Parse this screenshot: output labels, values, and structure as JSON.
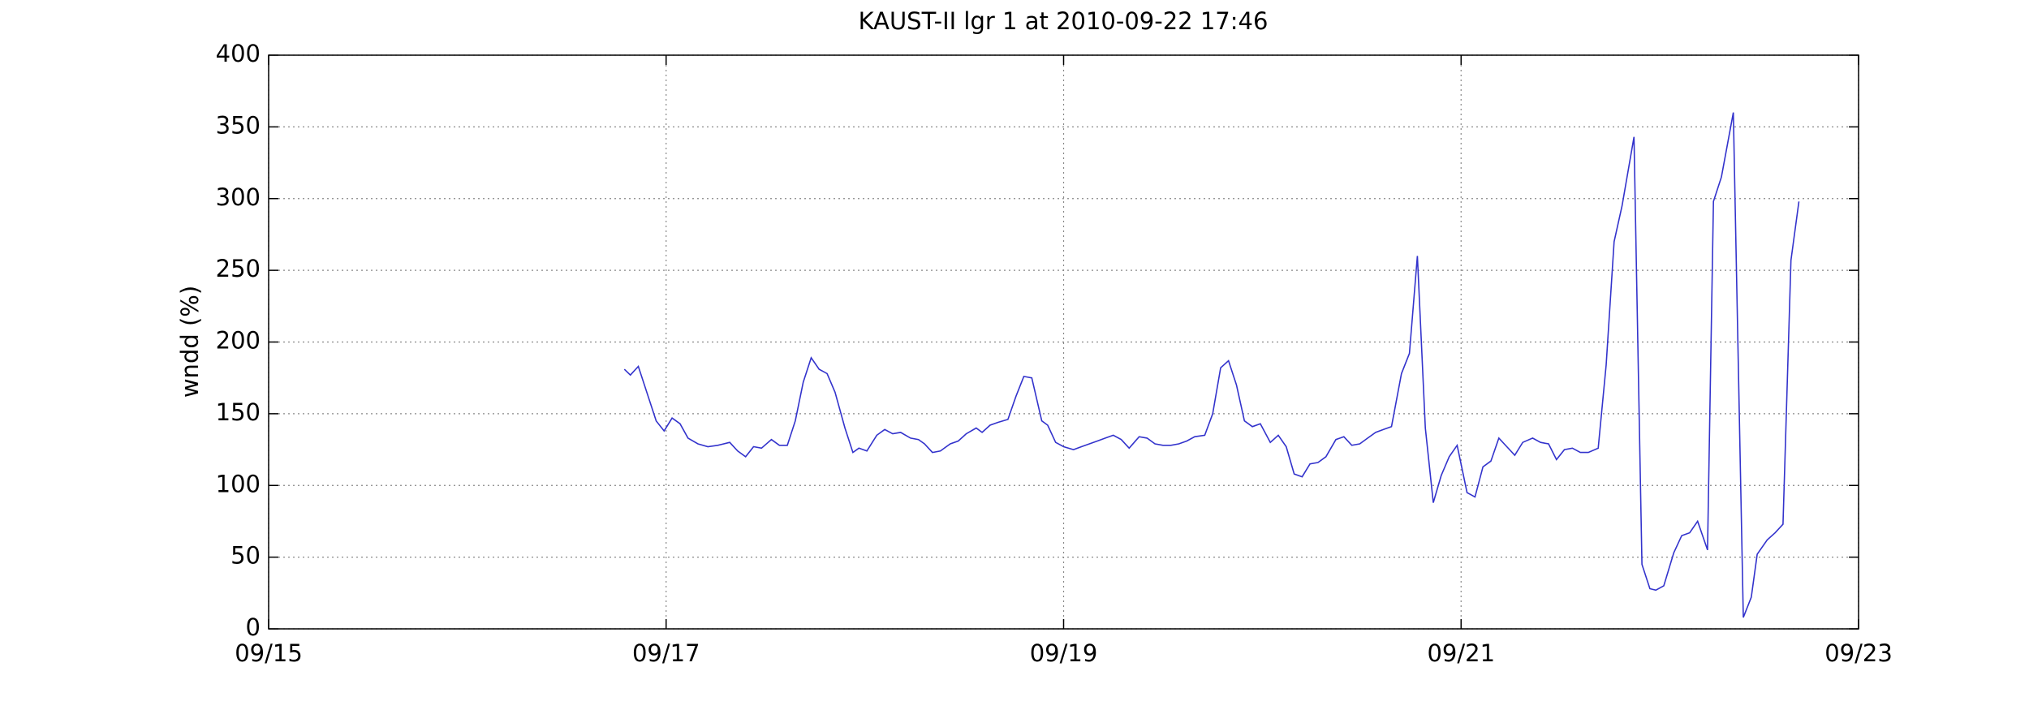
{
  "chart_data": {
    "type": "line",
    "title": "KAUST-II lgr 1 at 2010-09-22 17:46",
    "ylabel": "wndd (%)",
    "color": "#3333cc",
    "grid": true,
    "xlim": [
      0,
      8
    ],
    "xticks": [
      {
        "value": 0,
        "label": "09/15"
      },
      {
        "value": 2,
        "label": "09/17"
      },
      {
        "value": 4,
        "label": "09/19"
      },
      {
        "value": 6,
        "label": "09/21"
      },
      {
        "value": 8,
        "label": "09/23"
      }
    ],
    "ylim": [
      0,
      400
    ],
    "yticks": [
      0,
      50,
      100,
      150,
      200,
      250,
      300,
      350,
      400
    ],
    "x": [
      1.79,
      1.82,
      1.86,
      1.95,
      1.99,
      2.03,
      2.07,
      2.11,
      2.16,
      2.21,
      2.26,
      2.32,
      2.36,
      2.4,
      2.44,
      2.48,
      2.53,
      2.57,
      2.61,
      2.65,
      2.69,
      2.73,
      2.77,
      2.81,
      2.85,
      2.9,
      2.94,
      2.97,
      3.01,
      3.06,
      3.1,
      3.14,
      3.18,
      3.23,
      3.27,
      3.3,
      3.34,
      3.38,
      3.43,
      3.47,
      3.51,
      3.56,
      3.59,
      3.63,
      3.67,
      3.72,
      3.76,
      3.8,
      3.84,
      3.89,
      3.92,
      3.96,
      4.0,
      4.05,
      4.09,
      4.13,
      4.17,
      4.21,
      4.25,
      4.29,
      4.33,
      4.38,
      4.42,
      4.46,
      4.5,
      4.54,
      4.58,
      4.62,
      4.66,
      4.71,
      4.75,
      4.79,
      4.83,
      4.87,
      4.91,
      4.95,
      4.99,
      5.04,
      5.08,
      5.12,
      5.16,
      5.2,
      5.24,
      5.28,
      5.32,
      5.37,
      5.41,
      5.45,
      5.49,
      5.53,
      5.57,
      5.61,
      5.65,
      5.7,
      5.74,
      5.78,
      5.82,
      5.86,
      5.9,
      5.94,
      5.98,
      6.03,
      6.07,
      6.11,
      6.15,
      6.19,
      6.23,
      6.27,
      6.31,
      6.36,
      6.4,
      6.44,
      6.48,
      6.52,
      6.56,
      6.6,
      6.64,
      6.69,
      6.73,
      6.77,
      6.81,
      6.87,
      6.91,
      6.95,
      6.98,
      7.02,
      7.07,
      7.11,
      7.15,
      7.19,
      7.24,
      7.27,
      7.31,
      7.37,
      7.42,
      7.46,
      7.49,
      7.54,
      7.58,
      7.62,
      7.66,
      7.7
    ],
    "values": [
      181,
      177,
      183,
      145,
      138,
      147,
      143,
      133,
      129,
      127,
      128,
      130,
      124,
      120,
      127,
      126,
      132,
      128,
      128,
      145,
      172,
      189,
      181,
      178,
      165,
      140,
      123,
      126,
      124,
      135,
      139,
      136,
      137,
      133,
      132,
      129,
      123,
      124,
      129,
      131,
      136,
      140,
      137,
      142,
      144,
      146,
      162,
      176,
      175,
      145,
      142,
      130,
      127,
      125,
      127,
      129,
      131,
      133,
      135,
      132,
      126,
      134,
      133,
      129,
      128,
      128,
      129,
      131,
      134,
      135,
      150,
      182,
      187,
      170,
      145,
      141,
      143,
      130,
      135,
      127,
      108,
      106,
      115,
      116,
      120,
      132,
      134,
      128,
      129,
      133,
      137,
      139,
      141,
      178,
      192,
      260,
      140,
      88,
      107,
      120,
      128,
      95,
      92,
      113,
      117,
      133,
      127,
      121,
      130,
      133,
      130,
      129,
      118,
      125,
      126,
      123,
      123,
      126,
      184,
      270,
      295,
      343,
      45,
      28,
      27,
      30,
      53,
      65,
      67,
      75,
      55,
      298,
      315,
      360,
      8,
      22,
      52,
      62,
      67,
      73,
      257,
      298
    ]
  }
}
